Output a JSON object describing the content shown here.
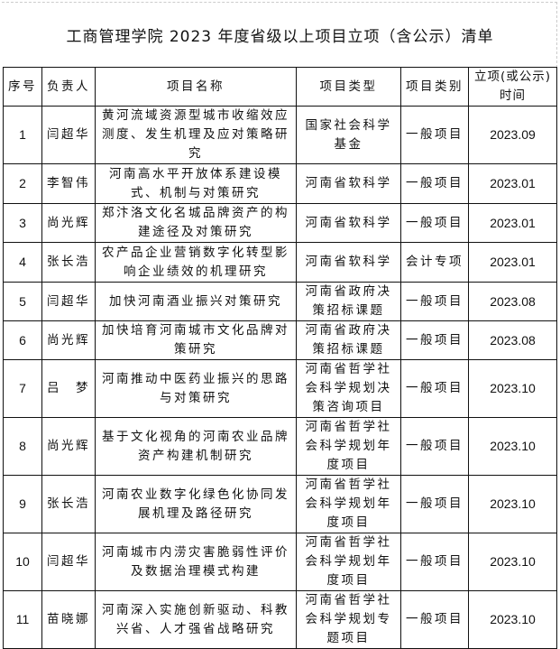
{
  "title": "工商管理学院 2023 年度省级以上项目立项（含公示）清单",
  "headers": [
    "序号",
    "负责人",
    "项目名称",
    "项目类型",
    "项目类别",
    "立项(或公示)时间"
  ],
  "rows": [
    {
      "no": "1",
      "leader": "闫超华",
      "name": "黄河流域资源型城市收缩效应测度、发生机理及应对策略研究",
      "type": "国家社会科学基金",
      "category": "一般项目",
      "date": "2023.09"
    },
    {
      "no": "2",
      "leader": "李智伟",
      "name": "河南高水平开放体系建设模式、机制与对策研究",
      "type": "河南省软科学",
      "category": "一般项目",
      "date": "2023.01"
    },
    {
      "no": "3",
      "leader": "尚光辉",
      "name": "郑汴洛文化名城品牌资产的构建途径及对策研究",
      "type": "河南省软科学",
      "category": "一般项目",
      "date": "2023.01"
    },
    {
      "no": "4",
      "leader": "张长浩",
      "name": "农产品企业营销数字化转型影响企业绩效的机理研究",
      "type": "河南省软科学",
      "category": "会计专项",
      "date": "2023.01"
    },
    {
      "no": "5",
      "leader": "闫超华",
      "name": "加快河南酒业振兴对策研究",
      "type": "河南省政府决策招标课题",
      "category": "一般项目",
      "date": "2023.08"
    },
    {
      "no": "6",
      "leader": "尚光辉",
      "name": "加快培育河南城市文化品牌对策研究",
      "type": "河南省政府决策招标课题",
      "category": "一般项目",
      "date": "2023.08"
    },
    {
      "no": "7",
      "leader": "吕　梦",
      "name": "河南推动中医药业振兴的思路与对策研究",
      "type": "河南省哲学社会科学规划决策咨询项目",
      "category": "一般项目",
      "date": "2023.10"
    },
    {
      "no": "8",
      "leader": "尚光辉",
      "name": "基于文化视角的河南农业品牌资产构建机制研究",
      "type": "河南省哲学社会科学规划年度项目",
      "category": "一般项目",
      "date": "2023.10"
    },
    {
      "no": "9",
      "leader": "张长浩",
      "name": "河南农业数字化绿色化协同发展机理及路径研究",
      "type": "河南省哲学社会科学规划年度项目",
      "category": "一般项目",
      "date": "2023.10"
    },
    {
      "no": "10",
      "leader": "闫超华",
      "name": "河南城市内涝灾害脆弱性评价及数据治理模式构建",
      "type": "河南省哲学社会科学规划年度项目",
      "category": "一般项目",
      "date": "2023.10"
    },
    {
      "no": "11",
      "leader": "苗晓娜",
      "name": "河南深入实施创新驱动、科教兴省、人才强省战略研究",
      "type": "河南省哲学社会科学规划专题项目",
      "category": "一般项目",
      "date": "2023.10"
    }
  ]
}
